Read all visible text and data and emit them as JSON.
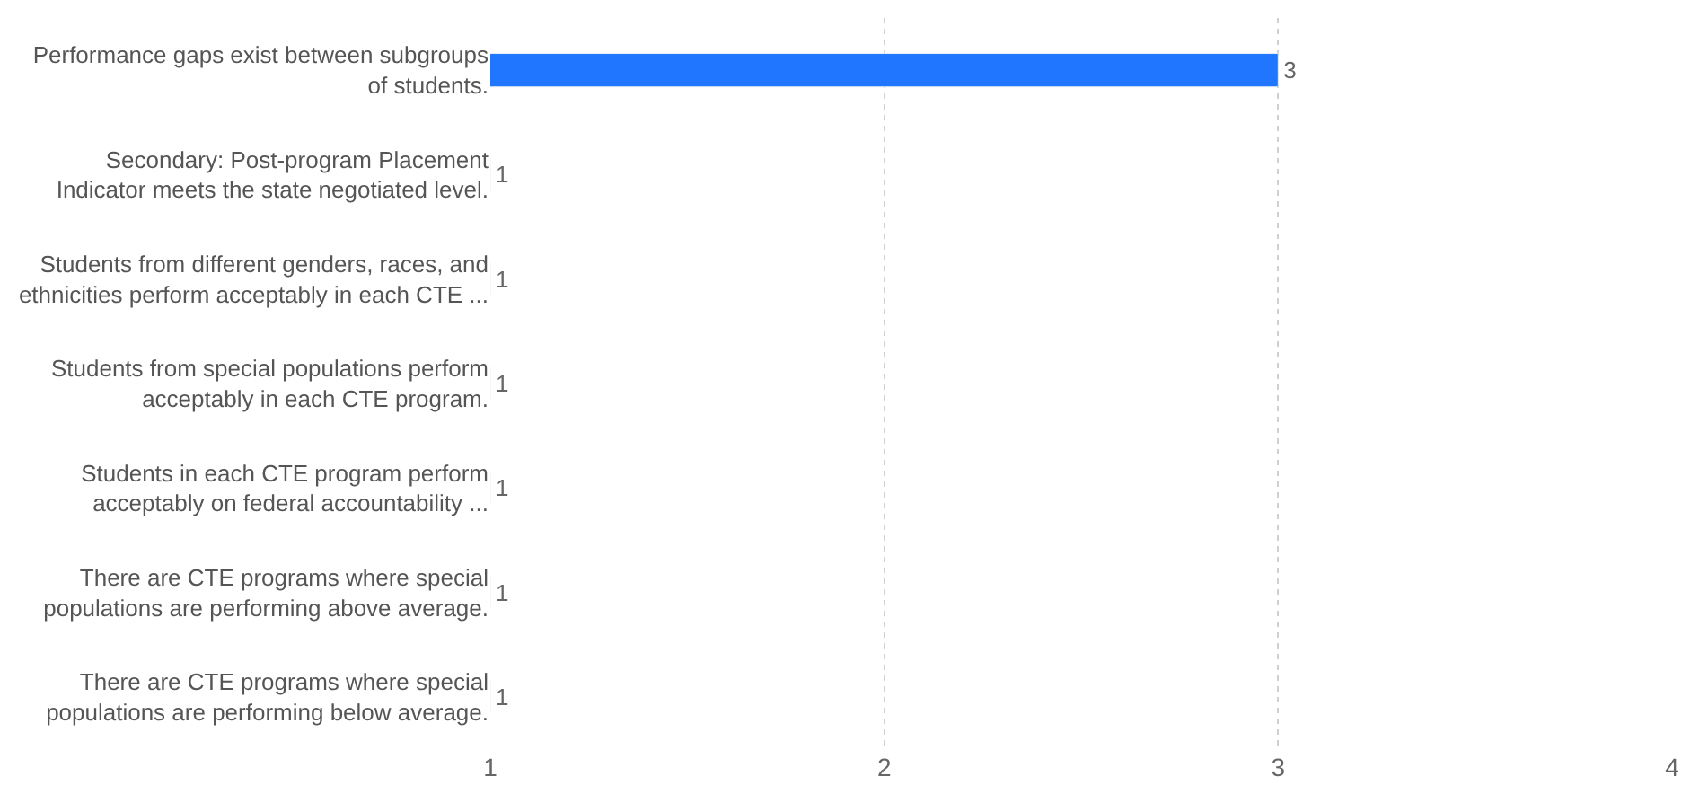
{
  "chart_data": {
    "type": "bar",
    "orientation": "horizontal",
    "categories": [
      "Performance gaps exist between subgroups\nof students.",
      "Secondary: Post-program Placement\nIndicator meets the state negotiated level.",
      "Students from different genders, races, and\nethnicities perform acceptably in each CTE ...",
      "Students from special populations perform\nacceptably in each CTE program.",
      "Students in each CTE program perform\nacceptably on federal accountability ...",
      "There are CTE programs where special\npopulations are performing above average.",
      "There are CTE programs where special\npopulations are performing below average."
    ],
    "values": [
      3,
      1,
      1,
      1,
      1,
      1,
      1
    ],
    "color": "#2176ff",
    "xlim": [
      1,
      4
    ],
    "xticks": [
      1,
      2,
      3,
      4
    ],
    "grid": "x",
    "data_labels": true
  }
}
